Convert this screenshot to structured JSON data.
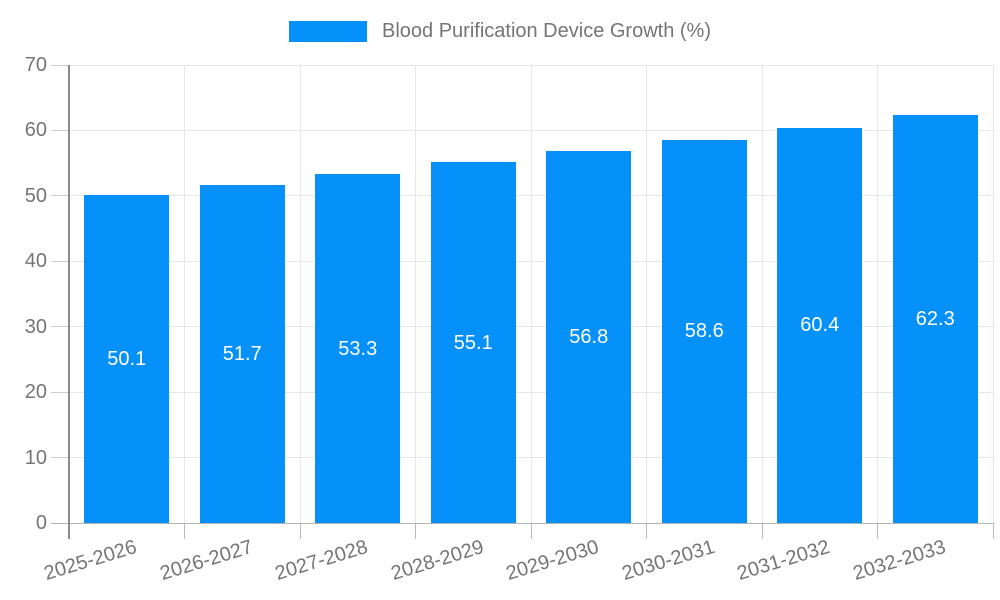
{
  "legend": {
    "label": "Blood Purification Device Growth (%)"
  },
  "chart_data": {
    "type": "bar",
    "title": "Blood Purification Device Growth (%)",
    "categories": [
      "2025-2026",
      "2026-2027",
      "2027-2028",
      "2028-2029",
      "2029-2030",
      "2030-2031",
      "2031-2032",
      "2032-2033"
    ],
    "values": [
      50.1,
      51.7,
      53.3,
      55.1,
      56.8,
      58.6,
      60.4,
      62.3
    ],
    "value_labels": [
      "50.1",
      "51.7",
      "53.3",
      "55.1",
      "56.8",
      "58.6",
      "60.4",
      "62.3"
    ],
    "xlabel": "",
    "ylabel": "",
    "ylim": [
      0,
      70
    ],
    "yticks": [
      0,
      10,
      20,
      30,
      40,
      50,
      60,
      70
    ],
    "grid": true,
    "legend_position": "top-center",
    "value_label_position": "center-of-bar",
    "colors": {
      "bar": "#0590fa",
      "text": "#757575",
      "grid": "#e6e6e6",
      "axis_line": "#8a8a8a",
      "zero_line": "#b3b3b3",
      "y_tick": "#cccccc",
      "x_tick": "#b9b9b9",
      "value_label": "#ffffff"
    }
  }
}
